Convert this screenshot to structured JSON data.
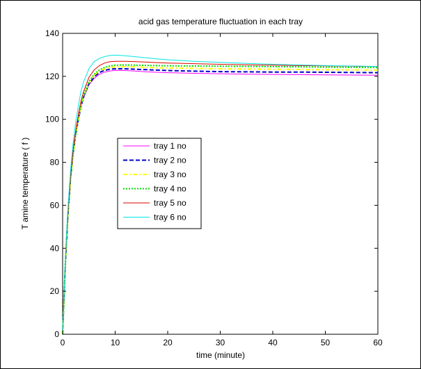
{
  "chart_data": {
    "type": "line",
    "title": "acid gas temperature fluctuation in each tray",
    "xlabel": "time (minute)",
    "ylabel": "T amine temperature ( f )",
    "xlim": [
      0,
      60
    ],
    "ylim": [
      0,
      140
    ],
    "xticks": [
      0,
      10,
      20,
      30,
      40,
      50,
      60
    ],
    "yticks": [
      0,
      20,
      40,
      60,
      80,
      100,
      120,
      140
    ],
    "grid": false,
    "legend_position": "center-left",
    "x": [
      0,
      0.5,
      1,
      1.5,
      2,
      2.5,
      3,
      3.5,
      4,
      5,
      6,
      7,
      8,
      9,
      10,
      12,
      14,
      16,
      18,
      20,
      25,
      30,
      35,
      40,
      45,
      50,
      55,
      60
    ],
    "series": [
      {
        "name": "tray 1 no",
        "color": "#ff00ff",
        "dash": "solid",
        "values": [
          0,
          32,
          55,
          72,
          84,
          93,
          100,
          106,
          110,
          116,
          119,
          121,
          122,
          122.5,
          122.8,
          122.7,
          122.4,
          122.1,
          121.9,
          121.7,
          121.4,
          121.2,
          121.0,
          120.9,
          120.8,
          120.7,
          120.6,
          120.5
        ]
      },
      {
        "name": "tray 2 no",
        "color": "#0000cc",
        "dash": "dashed",
        "values": [
          0,
          32,
          55,
          72,
          84,
          93,
          100,
          106,
          110.5,
          116.5,
          119.8,
          121.8,
          122.8,
          123.3,
          123.5,
          123.5,
          123.3,
          123.1,
          122.9,
          122.7,
          122.4,
          122.2,
          122.1,
          122.0,
          122.0,
          121.9,
          121.8,
          121.7
        ]
      },
      {
        "name": "tray 3 no",
        "color": "#ffff00",
        "dash": "dashdot",
        "values": [
          0,
          32,
          55,
          72,
          84,
          93,
          100.5,
          106.5,
          111,
          117,
          120.5,
          122.5,
          123.5,
          124.1,
          124.4,
          124.5,
          124.4,
          124.2,
          124.0,
          123.9,
          123.7,
          123.5,
          123.4,
          123.3,
          123.2,
          123.1,
          123.0,
          122.9
        ]
      },
      {
        "name": "tray 4 no",
        "color": "#00dd00",
        "dash": "dotted",
        "values": [
          0,
          32,
          55.5,
          72.5,
          84.5,
          93.5,
          101,
          107,
          111.5,
          117.5,
          121,
          123,
          124.2,
          124.8,
          125.2,
          125.3,
          125.2,
          125.1,
          125.0,
          124.9,
          124.8,
          124.7,
          124.6,
          124.5,
          124.4,
          124.3,
          124.2,
          124.1
        ]
      },
      {
        "name": "tray 5 no",
        "color": "#dd0000",
        "dash": "solid",
        "values": [
          0,
          33,
          56,
          73.5,
          86,
          95,
          102.5,
          108.5,
          113,
          119.5,
          123,
          125,
          126.2,
          126.8,
          127,
          127,
          126.8,
          126.6,
          126.4,
          126.2,
          125.9,
          125.6,
          125.4,
          125.2,
          125.0,
          124.9,
          124.7,
          124.6
        ]
      },
      {
        "name": "tray 6 no",
        "color": "#00e5e5",
        "dash": "solid",
        "values": [
          0,
          34,
          58,
          76,
          89,
          99,
          106.5,
          113,
          117.5,
          123.5,
          126.8,
          128.4,
          129.2,
          129.7,
          129.9,
          129.6,
          129.1,
          128.6,
          128.1,
          127.7,
          127,
          126.5,
          126,
          125.6,
          125.3,
          125.0,
          124.8,
          124.6
        ]
      }
    ]
  }
}
